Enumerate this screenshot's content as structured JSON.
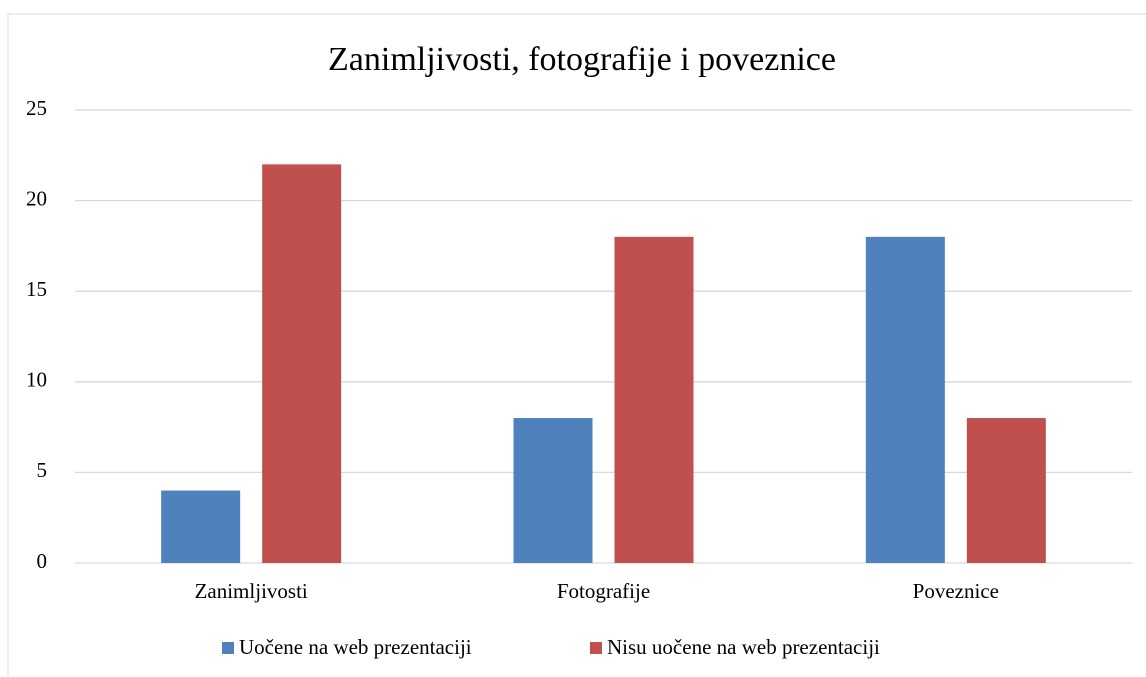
{
  "chart_data": {
    "type": "bar",
    "title": "Zanimljivosti, fotografije i poveznice",
    "categories": [
      "Zanimljivosti",
      "Fotografije",
      "Poveznice"
    ],
    "series": [
      {
        "name": "Uočene na web prezentaciji",
        "color": "#4f81bd",
        "values": [
          4,
          8,
          18
        ]
      },
      {
        "name": "Nisu uočene na web prezentaciji",
        "color": "#c0504d",
        "values": [
          22,
          18,
          8
        ]
      }
    ],
    "ylim": [
      0,
      25
    ],
    "yticks": [
      0,
      5,
      10,
      15,
      20,
      25
    ],
    "grid": true,
    "legend": "bottom"
  }
}
